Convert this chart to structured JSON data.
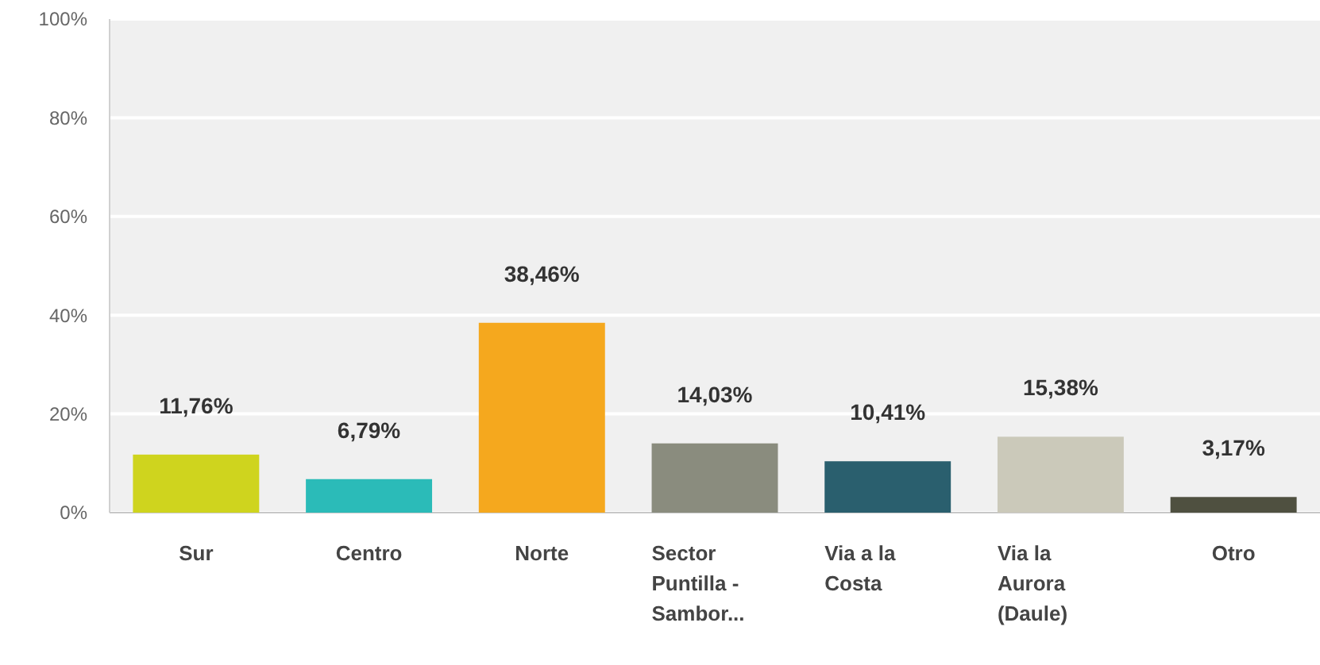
{
  "chart_data": {
    "type": "bar",
    "categories": [
      "Sur",
      "Centro",
      "Norte",
      "Sector Puntilla - Sambor...",
      "Via a la Costa",
      "Via la Aurora (Daule)",
      "Otro"
    ],
    "values": [
      11.76,
      6.79,
      38.46,
      14.03,
      10.41,
      15.38,
      3.17
    ],
    "value_labels": [
      "11,76%",
      "6,79%",
      "38,46%",
      "14,03%",
      "10,41%",
      "15,38%",
      "3,17%"
    ],
    "colors": [
      "#cfd41e",
      "#2bbbb8",
      "#f5a81e",
      "#8a8c7e",
      "#2a5f6e",
      "#cbc9ba",
      "#4f5040"
    ],
    "ylim": [
      0,
      100
    ],
    "yticks": [
      {
        "value": 0,
        "label": "0%"
      },
      {
        "value": 20,
        "label": "20%"
      },
      {
        "value": 40,
        "label": "40%"
      },
      {
        "value": 60,
        "label": "60%"
      },
      {
        "value": 80,
        "label": "80%"
      },
      {
        "value": 100,
        "label": "100%"
      }
    ],
    "grid": "y"
  }
}
